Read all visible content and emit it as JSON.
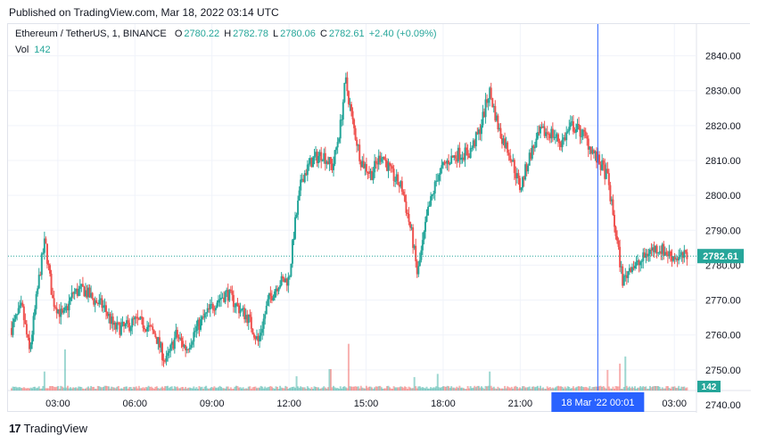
{
  "published": "Published on TradingView.com, Mar 18, 2022 03:14 UTC",
  "legend": {
    "symbol": "Ethereum / TetherUS, 1, BINANCE",
    "o_label": "O",
    "o_value": "2780.22",
    "h_label": "H",
    "h_value": "2782.78",
    "l_label": "L",
    "l_value": "2780.06",
    "c_label": "C",
    "c_value": "2782.61",
    "change": "+2.40 (+0.09%)",
    "vol_label": "Vol",
    "vol_value": "142"
  },
  "footer": {
    "brand": "TradingView"
  },
  "colors": {
    "up": "#26a69a",
    "down": "#ef5350",
    "crosshair": "#2962ff",
    "grid": "#f0f3fa"
  },
  "chart_data": {
    "type": "candlestick",
    "title": "Ethereum / TetherUS, 1, BINANCE",
    "ylim": [
      2740,
      2845
    ],
    "y_ticks": [
      "2840.00",
      "2830.00",
      "2820.00",
      "2810.00",
      "2800.00",
      "2790.00",
      "2780.00",
      "2770.00",
      "2760.00",
      "2750.00",
      "2740.00"
    ],
    "y_tick_values": [
      2840,
      2830,
      2820,
      2810,
      2800,
      2790,
      2780,
      2770,
      2760,
      2750,
      2740
    ],
    "x_ticks": [
      "03:00",
      "06:00",
      "09:00",
      "12:00",
      "15:00",
      "18:00",
      "21:00",
      "03:00"
    ],
    "x_tick_hours": [
      3,
      6,
      9,
      12,
      15,
      18,
      21,
      27
    ],
    "x_range_hours": [
      1.2,
      28.0
    ],
    "crosshair_time_label": "18 Mar '22   00:01",
    "crosshair_hour": 24.02,
    "last_price_label": "2782.61",
    "last_price": 2782.61,
    "last_volume_label": "142",
    "price_path": [
      [
        1.2,
        2762
      ],
      [
        1.6,
        2768
      ],
      [
        1.9,
        2755
      ],
      [
        2.3,
        2778
      ],
      [
        2.5,
        2787
      ],
      [
        2.8,
        2770
      ],
      [
        3.2,
        2765
      ],
      [
        3.6,
        2772
      ],
      [
        4.0,
        2773
      ],
      [
        4.4,
        2770
      ],
      [
        4.8,
        2768
      ],
      [
        5.2,
        2762
      ],
      [
        5.6,
        2762
      ],
      [
        6.0,
        2764
      ],
      [
        6.4,
        2763
      ],
      [
        6.8,
        2760
      ],
      [
        7.2,
        2752
      ],
      [
        7.6,
        2760
      ],
      [
        8.0,
        2756
      ],
      [
        8.4,
        2762
      ],
      [
        8.8,
        2766
      ],
      [
        9.2,
        2770
      ],
      [
        9.6,
        2772
      ],
      [
        10.0,
        2768
      ],
      [
        10.4,
        2765
      ],
      [
        10.8,
        2758
      ],
      [
        11.2,
        2770
      ],
      [
        11.6,
        2775
      ],
      [
        12.0,
        2776
      ],
      [
        12.2,
        2790
      ],
      [
        12.5,
        2805
      ],
      [
        12.9,
        2810
      ],
      [
        13.3,
        2812
      ],
      [
        13.7,
        2808
      ],
      [
        14.0,
        2820
      ],
      [
        14.2,
        2833
      ],
      [
        14.5,
        2820
      ],
      [
        14.8,
        2810
      ],
      [
        15.2,
        2806
      ],
      [
        15.6,
        2812
      ],
      [
        16.0,
        2806
      ],
      [
        16.4,
        2802
      ],
      [
        16.8,
        2788
      ],
      [
        17.0,
        2777
      ],
      [
        17.4,
        2795
      ],
      [
        17.8,
        2806
      ],
      [
        18.2,
        2810
      ],
      [
        18.6,
        2812
      ],
      [
        19.0,
        2812
      ],
      [
        19.4,
        2818
      ],
      [
        19.8,
        2830
      ],
      [
        20.2,
        2818
      ],
      [
        20.6,
        2812
      ],
      [
        21.0,
        2802
      ],
      [
        21.4,
        2812
      ],
      [
        21.8,
        2818
      ],
      [
        22.2,
        2818
      ],
      [
        22.6,
        2815
      ],
      [
        23.0,
        2820
      ],
      [
        23.4,
        2818
      ],
      [
        23.8,
        2813
      ],
      [
        24.0,
        2810
      ],
      [
        24.2,
        2808
      ],
      [
        24.4,
        2805
      ],
      [
        24.7,
        2790
      ],
      [
        25.0,
        2775
      ],
      [
        25.3,
        2780
      ],
      [
        25.6,
        2780
      ],
      [
        26.0,
        2784
      ],
      [
        26.4,
        2785
      ],
      [
        26.8,
        2783
      ],
      [
        27.2,
        2782
      ],
      [
        27.5,
        2782.61
      ]
    ],
    "volume_ylim": [
      0,
      800
    ],
    "volume_spikes": [
      [
        2.5,
        240
      ],
      [
        3.3,
        520
      ],
      [
        12.3,
        180
      ],
      [
        13.6,
        270
      ],
      [
        14.3,
        590
      ],
      [
        16.9,
        170
      ],
      [
        17.8,
        210
      ],
      [
        19.8,
        240
      ],
      [
        24.4,
        260
      ],
      [
        24.9,
        340
      ],
      [
        25.1,
        430
      ]
    ]
  }
}
